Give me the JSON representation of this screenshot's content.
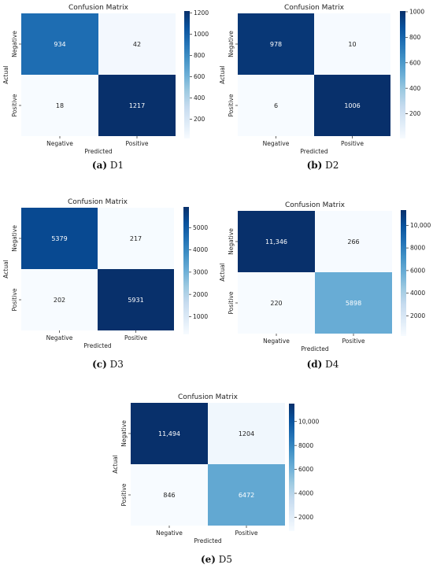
{
  "chart_data": [
    {
      "type": "heatmap",
      "title": "Confusion Matrix",
      "xlabel": "Predicted",
      "ylabel": "Actual",
      "x_categories": [
        "Negative",
        "Positive"
      ],
      "y_categories": [
        "Negative",
        "Positive"
      ],
      "values": [
        [
          934,
          42
        ],
        [
          18,
          1217
        ]
      ],
      "cell_labels": [
        [
          "934",
          "42"
        ],
        [
          "18",
          "1217"
        ]
      ],
      "colorbar_ticks": [
        200,
        400,
        600,
        800,
        1000,
        1200
      ],
      "colorbar_tick_labels": [
        "200",
        "400",
        "600",
        "800",
        "1000",
        "1200"
      ],
      "caption_label": "(a)",
      "caption_text": "D1"
    },
    {
      "type": "heatmap",
      "title": "Confusion Matrix",
      "xlabel": "Predicted",
      "ylabel": "Actual",
      "x_categories": [
        "Negative",
        "Positive"
      ],
      "y_categories": [
        "Negative",
        "Positive"
      ],
      "values": [
        [
          978,
          10
        ],
        [
          6,
          1006
        ]
      ],
      "cell_labels": [
        [
          "978",
          "10"
        ],
        [
          "6",
          "1006"
        ]
      ],
      "colorbar_ticks": [
        200,
        400,
        600,
        800,
        1000
      ],
      "colorbar_tick_labels": [
        "200",
        "400",
        "600",
        "800",
        "1000"
      ],
      "caption_label": "(b)",
      "caption_text": "D2"
    },
    {
      "type": "heatmap",
      "title": "Confusion Matrix",
      "xlabel": "Predicted",
      "ylabel": "Actual",
      "x_categories": [
        "Negative",
        "Positive"
      ],
      "y_categories": [
        "Negative",
        "Positive"
      ],
      "values": [
        [
          5379,
          217
        ],
        [
          202,
          5931
        ]
      ],
      "cell_labels": [
        [
          "5379",
          "217"
        ],
        [
          "202",
          "5931"
        ]
      ],
      "colorbar_ticks": [
        1000,
        2000,
        3000,
        4000,
        5000
      ],
      "colorbar_tick_labels": [
        "1000",
        "2000",
        "3000",
        "4000",
        "5000"
      ],
      "caption_label": "(c)",
      "caption_text": "D3"
    },
    {
      "type": "heatmap",
      "title": "Confusion Matrix",
      "xlabel": "Predicted",
      "ylabel": "Actual",
      "x_categories": [
        "Negative",
        "Positive"
      ],
      "y_categories": [
        "Negative",
        "Positive"
      ],
      "values": [
        [
          11346,
          266
        ],
        [
          220,
          5898
        ]
      ],
      "cell_labels": [
        [
          "11,346",
          "266"
        ],
        [
          "220",
          "5898"
        ]
      ],
      "colorbar_ticks": [
        2000,
        4000,
        6000,
        8000,
        10000
      ],
      "colorbar_tick_labels": [
        "2000",
        "4000",
        "6000",
        "8000",
        "10,000"
      ],
      "caption_label": "(d)",
      "caption_text": "D4"
    },
    {
      "type": "heatmap",
      "title": "Confusion Matrix",
      "xlabel": "Predicted",
      "ylabel": "Actual",
      "x_categories": [
        "Negative",
        "Positive"
      ],
      "y_categories": [
        "Negative",
        "Positive"
      ],
      "values": [
        [
          11494,
          1204
        ],
        [
          846,
          6472
        ]
      ],
      "cell_labels": [
        [
          "11,494",
          "1204"
        ],
        [
          "846",
          "6472"
        ]
      ],
      "colorbar_ticks": [
        2000,
        4000,
        6000,
        8000,
        10000
      ],
      "colorbar_tick_labels": [
        "2000",
        "4000",
        "6000",
        "8000",
        "10,000"
      ],
      "caption_label": "(e)",
      "caption_text": "D5"
    }
  ]
}
